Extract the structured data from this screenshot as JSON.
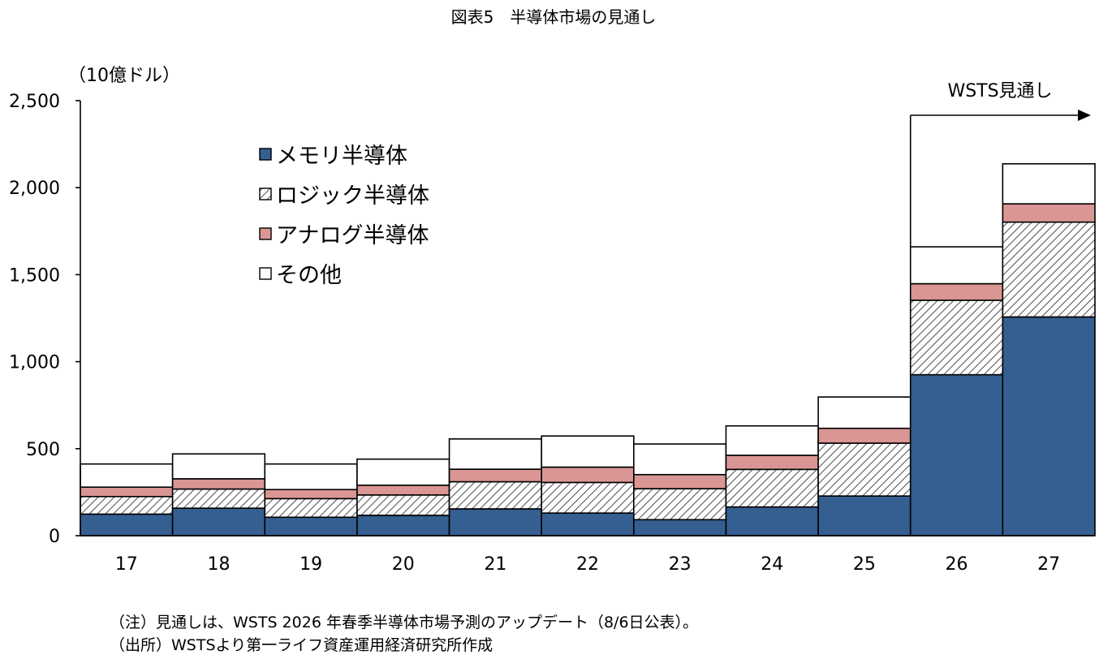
{
  "chart_data": {
    "type": "bar",
    "stacked": true,
    "title": "図表5　半導体市場の見通し",
    "unit_label": "（10億ドル）",
    "categories": [
      "17",
      "18",
      "19",
      "20",
      "21",
      "22",
      "23",
      "24",
      "25",
      "26",
      "27"
    ],
    "ylim": [
      0,
      2500
    ],
    "yticks": [
      0,
      500,
      1000,
      1500,
      2000,
      2500
    ],
    "ytick_labels": [
      "0",
      "500",
      "1,000",
      "1,500",
      "2,000",
      "2,500"
    ],
    "grid": false,
    "legend_position": "top-left",
    "series": [
      {
        "name": "メモリ半導体",
        "color": "#355F91",
        "pattern": "solid",
        "values": [
          124,
          158,
          106,
          117,
          154,
          130,
          92,
          165,
          228,
          925,
          1257
        ]
      },
      {
        "name": "ロジック半導体",
        "color": "#ffffff",
        "pattern": "hatched",
        "values": [
          101,
          110,
          107,
          117,
          156,
          176,
          178,
          216,
          304,
          428,
          545
        ]
      },
      {
        "name": "アナログ半導体",
        "color": "#DA9694",
        "pattern": "solid",
        "values": [
          54,
          59,
          52,
          56,
          72,
          88,
          81,
          81,
          85,
          95,
          105
        ]
      },
      {
        "name": "その他",
        "color": "#ffffff",
        "pattern": "solid",
        "values": [
          133,
          143,
          147,
          150,
          174,
          179,
          176,
          169,
          180,
          212,
          230
        ]
      }
    ],
    "annotation": {
      "text": "WSTS見通し",
      "applies_to": [
        "26",
        "27"
      ]
    }
  },
  "notes": [
    "（注）見通しは、WSTS 2026 年春季半導体市場予測のアップデート（8/6日公表）。",
    "（出所）WSTSより第一ライフ資産運用経済研究所作成"
  ]
}
